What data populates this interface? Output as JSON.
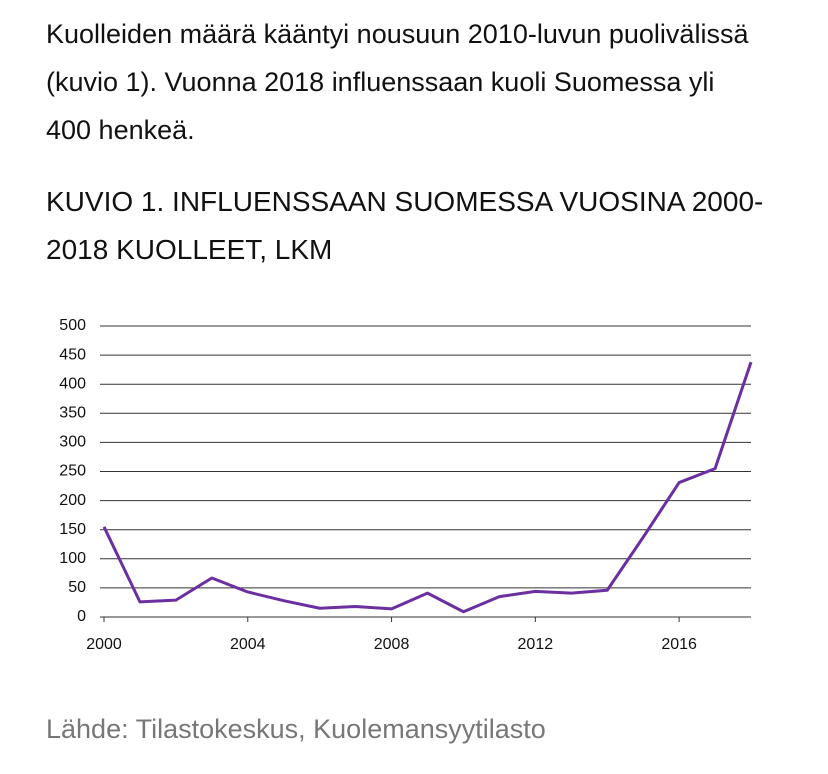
{
  "intro": "Kuolleiden määrä kääntyi nousuun 2010-luvun puolivälissä (kuvio 1). Vuonna 2018 influenssaan kuoli Suomessa yli 400 henkeä.",
  "chart_data": {
    "type": "line",
    "title": "KUVIO 1. INFLUENSSAAN SUOMESSA VUOSINA 2000-2018 KUOLLEET, LKM",
    "x": [
      2000,
      2001,
      2002,
      2003,
      2004,
      2005,
      2006,
      2007,
      2008,
      2009,
      2010,
      2011,
      2012,
      2013,
      2014,
      2015,
      2016,
      2017,
      2018
    ],
    "series": [
      {
        "name": "Kuolleet",
        "color": "#6b2fa0",
        "values": [
          155,
          26,
          29,
          67,
          43,
          28,
          15,
          18,
          14,
          41,
          9,
          35,
          44,
          41,
          46,
          137,
          231,
          255,
          438
        ]
      }
    ],
    "xlim": [
      2000,
      2018
    ],
    "xticks": [
      2000,
      2004,
      2008,
      2012,
      2016
    ],
    "ylim": [
      0,
      500
    ],
    "yticks": [
      0,
      50,
      100,
      150,
      200,
      250,
      300,
      350,
      400,
      450,
      500
    ],
    "grid": true
  },
  "source": "Lähde: Tilastokeskus, Kuolemansyytilasto"
}
